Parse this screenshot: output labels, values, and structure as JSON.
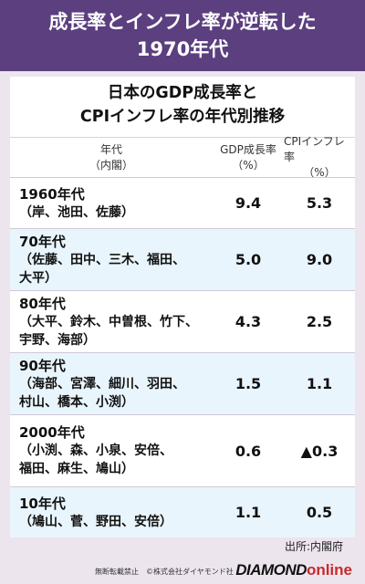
{
  "banner": {
    "line1": "成長率とインフレ率が逆転した",
    "line2": "1970年代"
  },
  "card": {
    "title_line1": "日本のGDP成長率と",
    "title_line2": "CPIインフレ率の年代別推移"
  },
  "table": {
    "headers": {
      "era_line1": "年代",
      "era_line2": "（内閣）",
      "gdp_line1": "GDP成長率",
      "gdp_line2": "（%）",
      "cpi_line1": "CPIインフレ率",
      "cpi_line2": "（%）"
    },
    "rows": [
      {
        "decade": "1960年代",
        "pm_line1": "（岸、池田、佐藤）",
        "pm_line2": "",
        "gdp": "9.4",
        "cpi": "5.3"
      },
      {
        "decade": "70年代",
        "pm_line1": "（佐藤、田中、三木、福田、",
        "pm_line2": "大平）",
        "gdp": "5.0",
        "cpi": "9.0"
      },
      {
        "decade": "80年代",
        "pm_line1": "（大平、鈴木、中曽根、竹下、",
        "pm_line2": "宇野、海部）",
        "gdp": "4.3",
        "cpi": "2.5"
      },
      {
        "decade": "90年代",
        "pm_line1": "（海部、宮澤、細川、羽田、",
        "pm_line2": "村山、橋本、小渕）",
        "gdp": "1.5",
        "cpi": "1.1"
      },
      {
        "decade": "2000年代",
        "pm_line1": "（小渕、森、小泉、安倍、",
        "pm_line2": "福田、麻生、鳩山）",
        "gdp": "0.6",
        "cpi": "▲0.3"
      },
      {
        "decade": "10年代",
        "pm_line1": "（鳩山、菅、野田、安倍）",
        "pm_line2": "",
        "gdp": "1.1",
        "cpi": "0.5"
      }
    ]
  },
  "source": "出所:内閣府",
  "footer": {
    "copyright": "無断転載禁止　©株式会社ダイヤモンド社",
    "logo_part1": "DIAMOND",
    "logo_part2": "online"
  },
  "colors": {
    "banner_bg": "#5b3f7f",
    "page_bg": "#ece5ee",
    "alt_row_bg": "#e9f5fc",
    "logo_accent": "#c52b2b"
  }
}
